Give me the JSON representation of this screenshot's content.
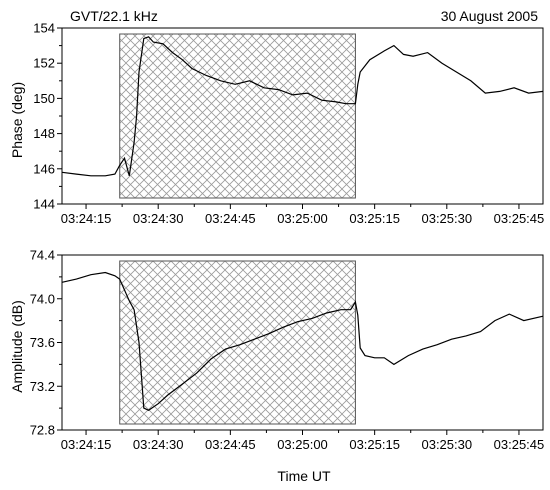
{
  "header": {
    "station": "GVT/22.1 kHz",
    "date": "30 August 2005"
  },
  "shared": {
    "xlabel": "Time UT",
    "x_ticks": [
      "03:24:15",
      "03:24:30",
      "03:24:45",
      "03:25:00",
      "03:25:15",
      "03:25:30",
      "03:25:45"
    ],
    "x_range_seconds": [
      0,
      100
    ],
    "hatched_interval": [
      "03:24:22",
      "03:25:11"
    ]
  },
  "chart_data": [
    {
      "type": "line",
      "title": "",
      "ylabel": "Phase (deg)",
      "ylim": [
        144,
        154
      ],
      "y_ticks": [
        "144",
        "146",
        "148",
        "150",
        "152",
        "154"
      ],
      "x": [
        "03:24:10",
        "03:24:13",
        "03:24:16",
        "03:24:19",
        "03:24:21",
        "03:24:22",
        "03:24:23",
        "03:24:24",
        "03:24:25",
        "03:24:25.5",
        "03:24:26",
        "03:24:27",
        "03:24:28",
        "03:24:29",
        "03:24:31",
        "03:24:33",
        "03:24:35",
        "03:24:37",
        "03:24:40",
        "03:24:43",
        "03:24:46",
        "03:24:49",
        "03:24:52",
        "03:24:55",
        "03:24:58",
        "03:25:01",
        "03:25:04",
        "03:25:07",
        "03:25:09",
        "03:25:11",
        "03:25:11.5",
        "03:25:12",
        "03:25:14",
        "03:25:17",
        "03:25:19",
        "03:25:21",
        "03:25:23",
        "03:25:26",
        "03:25:29",
        "03:25:32",
        "03:25:35",
        "03:25:38",
        "03:25:41",
        "03:25:44",
        "03:25:47",
        "03:25:50"
      ],
      "values": [
        145.8,
        145.7,
        145.6,
        145.6,
        145.7,
        146.2,
        146.6,
        145.6,
        147.5,
        149.0,
        151.5,
        153.4,
        153.5,
        153.2,
        153.1,
        152.6,
        152.2,
        151.7,
        151.3,
        151.0,
        150.8,
        151.0,
        150.6,
        150.5,
        150.2,
        150.3,
        149.9,
        149.8,
        149.7,
        149.7,
        150.8,
        151.5,
        152.2,
        152.7,
        153.0,
        152.5,
        152.4,
        152.6,
        152.0,
        151.5,
        151.0,
        150.3,
        150.4,
        150.6,
        150.3,
        150.4
      ]
    },
    {
      "type": "line",
      "title": "",
      "ylabel": "Amplitude (dB)",
      "ylim": [
        72.8,
        74.4
      ],
      "y_ticks": [
        "72.8",
        "73.2",
        "73.6",
        "74.0",
        "74.4"
      ],
      "x": [
        "03:24:10",
        "03:24:13",
        "03:24:16",
        "03:24:19",
        "03:24:21",
        "03:24:22",
        "03:24:23",
        "03:24:24",
        "03:24:25",
        "03:24:26",
        "03:24:27",
        "03:24:28",
        "03:24:30",
        "03:24:32",
        "03:24:35",
        "03:24:38",
        "03:24:41",
        "03:24:44",
        "03:24:47",
        "03:24:50",
        "03:24:53",
        "03:24:56",
        "03:24:59",
        "03:25:02",
        "03:25:05",
        "03:25:08",
        "03:25:10",
        "03:25:11",
        "03:25:11.5",
        "03:25:12",
        "03:25:13",
        "03:25:15",
        "03:25:17",
        "03:25:19",
        "03:25:22",
        "03:25:25",
        "03:25:28",
        "03:25:31",
        "03:25:34",
        "03:25:37",
        "03:25:40",
        "03:25:43",
        "03:25:46",
        "03:25:50"
      ],
      "values": [
        74.15,
        74.18,
        74.22,
        74.24,
        74.21,
        74.18,
        74.08,
        73.98,
        73.9,
        73.6,
        73.0,
        72.98,
        73.04,
        73.12,
        73.22,
        73.32,
        73.45,
        73.54,
        73.58,
        73.63,
        73.68,
        73.74,
        73.79,
        73.82,
        73.87,
        73.9,
        73.9,
        73.97,
        73.85,
        73.55,
        73.48,
        73.46,
        73.46,
        73.4,
        73.48,
        73.54,
        73.58,
        73.63,
        73.66,
        73.7,
        73.8,
        73.86,
        73.8,
        73.84
      ]
    }
  ]
}
